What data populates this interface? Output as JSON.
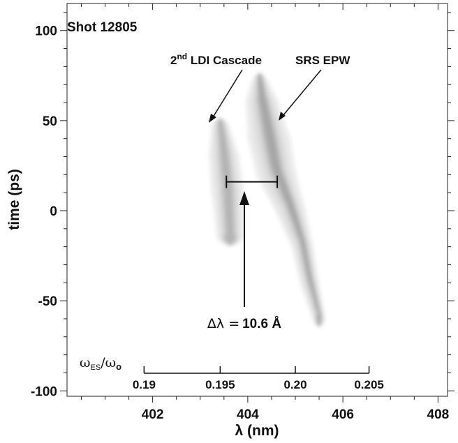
{
  "chart_data": {
    "type": "heatmap",
    "title": "",
    "xlabel": "λ (nm)",
    "ylabel": "time (ps)",
    "xlim": [
      400.2,
      408.2
    ],
    "ylim": [
      -103,
      115
    ],
    "x_ticks": [
      402,
      404,
      406,
      408
    ],
    "y_ticks": [
      100,
      50,
      0,
      -50,
      -100
    ],
    "colormap": "grayscale (white = low, dark gray = high)",
    "grid": false,
    "annotations": {
      "shot": "Shot 12805",
      "ldi_label_main": "2",
      "ldi_label_sup": "nd",
      "ldi_label_rest": " LDI Cascade",
      "epw_label": "SRS EPW",
      "delta_symbol": "Δλ =",
      "delta_value": "10.6 Å"
    },
    "delta_lambda": {
      "x_start": 403.55,
      "x_end": 404.62,
      "t": 16
    },
    "secondary_axis": {
      "label_main": "ω",
      "label_sub1": "ES",
      "label_mid": "/ω",
      "label_sub2": "o",
      "ticks": [
        "0.19",
        "0.195",
        "0.20",
        "0.205"
      ],
      "tick_lambda": [
        401.82,
        403.42,
        405.0,
        406.55
      ]
    },
    "features": [
      {
        "name": "2nd LDI Cascade",
        "points": [
          [
            403.42,
            47
          ],
          [
            403.5,
            30
          ],
          [
            403.58,
            10
          ],
          [
            403.63,
            -15
          ]
        ],
        "widths": [
          0.14,
          0.24,
          0.26,
          0.22
        ],
        "peak": 0.78
      },
      {
        "name": "SRS EPW",
        "points": [
          [
            404.25,
            72
          ],
          [
            404.3,
            60
          ],
          [
            404.45,
            40
          ],
          [
            404.6,
            20
          ],
          [
            404.9,
            0
          ],
          [
            405.15,
            -20
          ],
          [
            405.3,
            -40
          ],
          [
            405.5,
            -60
          ]
        ],
        "widths": [
          0.12,
          0.26,
          0.34,
          0.32,
          0.24,
          0.17,
          0.15,
          0.1
        ],
        "peak": 0.95
      }
    ]
  }
}
